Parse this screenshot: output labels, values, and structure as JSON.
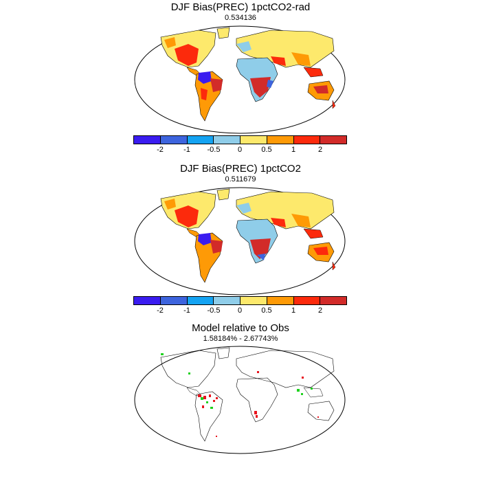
{
  "panels": [
    {
      "title": "DJF Bias(PREC) 1pctCO2-rad",
      "subtitle": "0.534136"
    },
    {
      "title": "DJF Bias(PREC) 1pctCO2",
      "subtitle": "0.511679"
    },
    {
      "title": "Model relative to Obs",
      "subtitle": "1.58184% - 2.67743%"
    }
  ],
  "colorbar": {
    "colors": [
      "#3a1cf0",
      "#3d64de",
      "#14a3f2",
      "#8fcde9",
      "#fde96c",
      "#fe9a06",
      "#fc2a0c",
      "#d22b29"
    ],
    "tick_labels": [
      "-2",
      "-1",
      "-0.5",
      "0",
      "0.5",
      "1",
      "2"
    ]
  },
  "legend_colors": {
    "better": "#1fd11f",
    "worse": "#e8141e"
  }
}
